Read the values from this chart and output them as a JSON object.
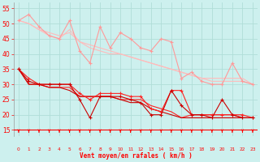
{
  "x": [
    0,
    1,
    2,
    3,
    4,
    5,
    6,
    7,
    8,
    9,
    10,
    11,
    12,
    13,
    14,
    15,
    16,
    17,
    18,
    19,
    20,
    21,
    22,
    23
  ],
  "line_light1": [
    51,
    53,
    49,
    46,
    45,
    51,
    41,
    37,
    49,
    42,
    47,
    45,
    42,
    41,
    45,
    44,
    32,
    34,
    31,
    30,
    30,
    37,
    31,
    30
  ],
  "line_light2": [
    51,
    50,
    48,
    46,
    45,
    48,
    44,
    42,
    41,
    40,
    40,
    39,
    38,
    37,
    36,
    35,
    34,
    33,
    32,
    32,
    32,
    32,
    32,
    30
  ],
  "line_light3": [
    51,
    50,
    48,
    47,
    46,
    47,
    44,
    43,
    42,
    41,
    40,
    39,
    38,
    37,
    36,
    35,
    34,
    33,
    32,
    31,
    31,
    31,
    31,
    30
  ],
  "line_dark1": [
    35,
    32,
    30,
    30,
    30,
    30,
    27,
    25,
    27,
    27,
    27,
    26,
    26,
    22,
    21,
    28,
    28,
    20,
    20,
    20,
    20,
    20,
    20,
    19
  ],
  "line_dark2": [
    35,
    31,
    30,
    30,
    30,
    30,
    25,
    19,
    26,
    26,
    26,
    25,
    24,
    20,
    20,
    28,
    23,
    20,
    20,
    19,
    25,
    20,
    19,
    19
  ],
  "line_dark3": [
    35,
    30,
    30,
    29,
    29,
    29,
    26,
    26,
    26,
    26,
    25,
    25,
    25,
    23,
    22,
    21,
    19,
    20,
    20,
    20,
    20,
    20,
    19,
    19
  ],
  "line_dark4": [
    35,
    30,
    30,
    29,
    29,
    28,
    26,
    26,
    26,
    26,
    25,
    24,
    24,
    22,
    21,
    20,
    19,
    19,
    19,
    19,
    19,
    19,
    19,
    19
  ],
  "background": "#cdf0ee",
  "grid_color": "#b0ddd8",
  "xlabel": "Vent moyen/en rafales ( km/h )",
  "ylim": [
    13,
    57
  ],
  "xlim": [
    -0.5,
    23.5
  ],
  "yticks": [
    15,
    20,
    25,
    30,
    35,
    40,
    45,
    50,
    55
  ]
}
